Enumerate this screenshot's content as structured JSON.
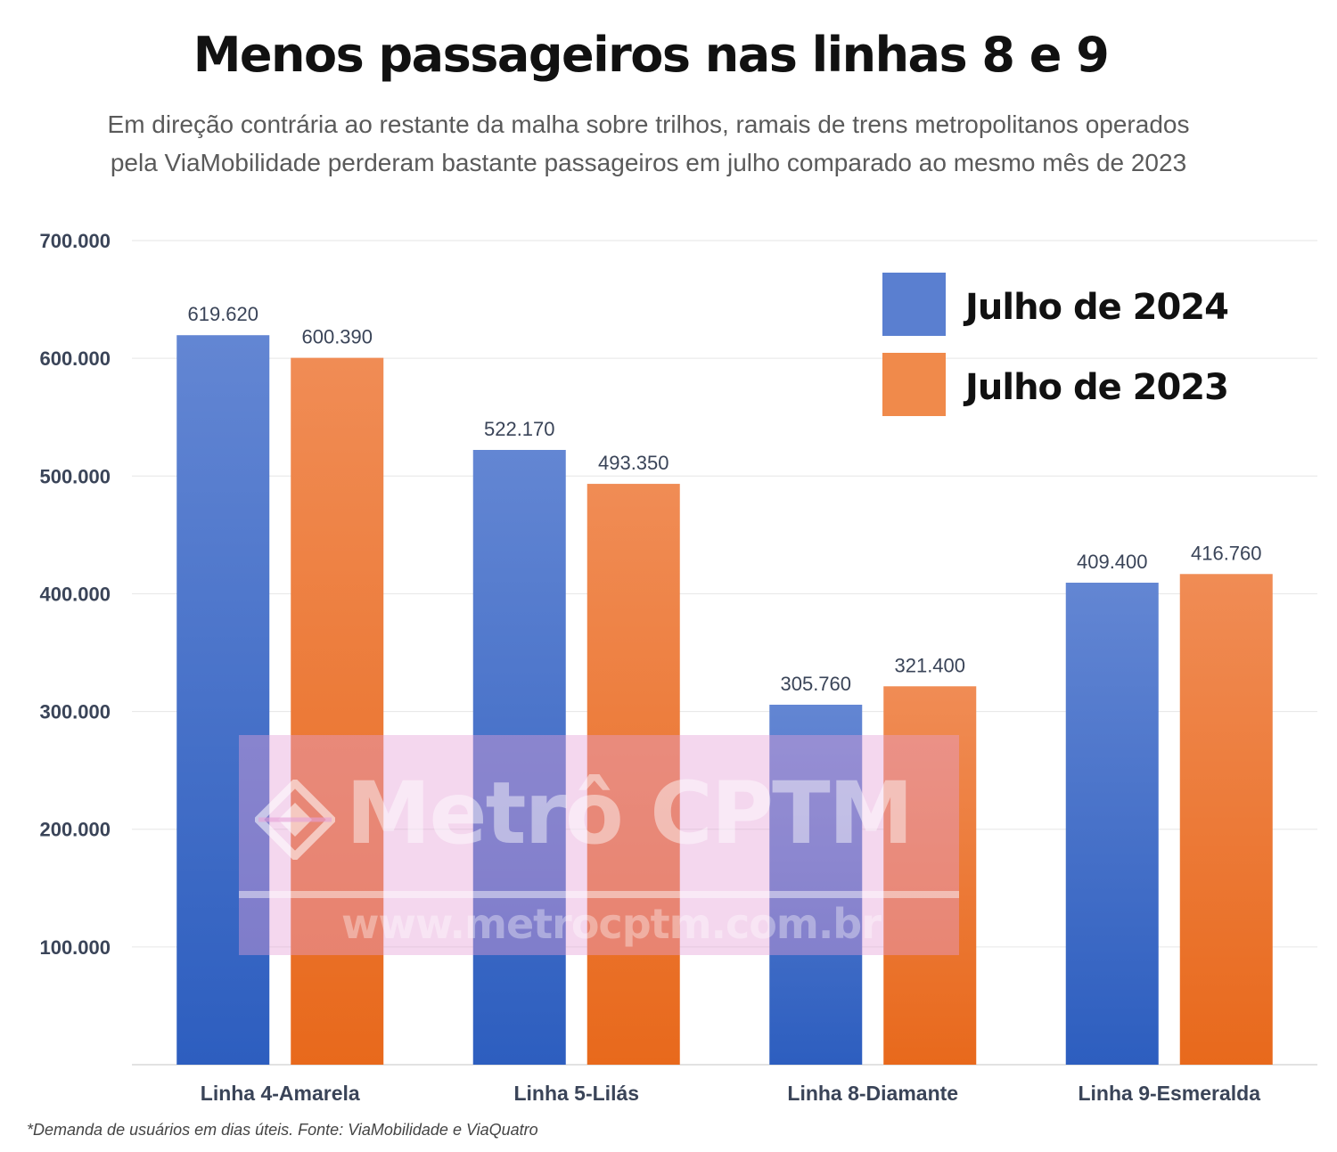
{
  "header": {
    "title": "Menos passageiros nas linhas 8 e 9",
    "subtitle_line1": "Em direção contrária ao restante da malha sobre trilhos, ramais de trens metropolitanos operados",
    "subtitle_line2": "pela ViaMobilidade perderam bastante passageiros em julho comparado ao mesmo mês de 2023"
  },
  "chart_data": {
    "type": "bar",
    "categories": [
      "Linha 4-Amarela",
      "Linha 5-Lilás",
      "Linha 8-Diamante",
      "Linha 9-Esmeralda"
    ],
    "series": [
      {
        "name": "Julho de 2024",
        "values": [
          619620,
          522170,
          305760,
          409400
        ],
        "value_labels": [
          "619.620",
          "522.170",
          "305.760",
          "409.400"
        ],
        "color": "#4a73d1"
      },
      {
        "name": "Julho de 2023",
        "values": [
          600390,
          493350,
          321400,
          416760
        ],
        "value_labels": [
          "600.390",
          "493.350",
          "321.400",
          "416.760"
        ],
        "color": "#f07f33"
      }
    ],
    "title": "Menos passageiros nas linhas 8 e 9",
    "xlabel": "",
    "ylabel": "",
    "ylim": [
      0,
      700000
    ],
    "yticks": [
      100000,
      200000,
      300000,
      400000,
      500000,
      600000,
      700000
    ],
    "ytick_labels": [
      "100.000",
      "200.000",
      "300.000",
      "400.000",
      "500.000",
      "600.000",
      "700.000"
    ],
    "grid": true,
    "legend_position": "top-right"
  },
  "watermark": {
    "brand": "Metrô CPTM",
    "url": "www.metrocptm.com.br"
  },
  "footnote": "*Demanda de usuários em dias úteis. Fonte: ViaMobilidade e ViaQuatro"
}
